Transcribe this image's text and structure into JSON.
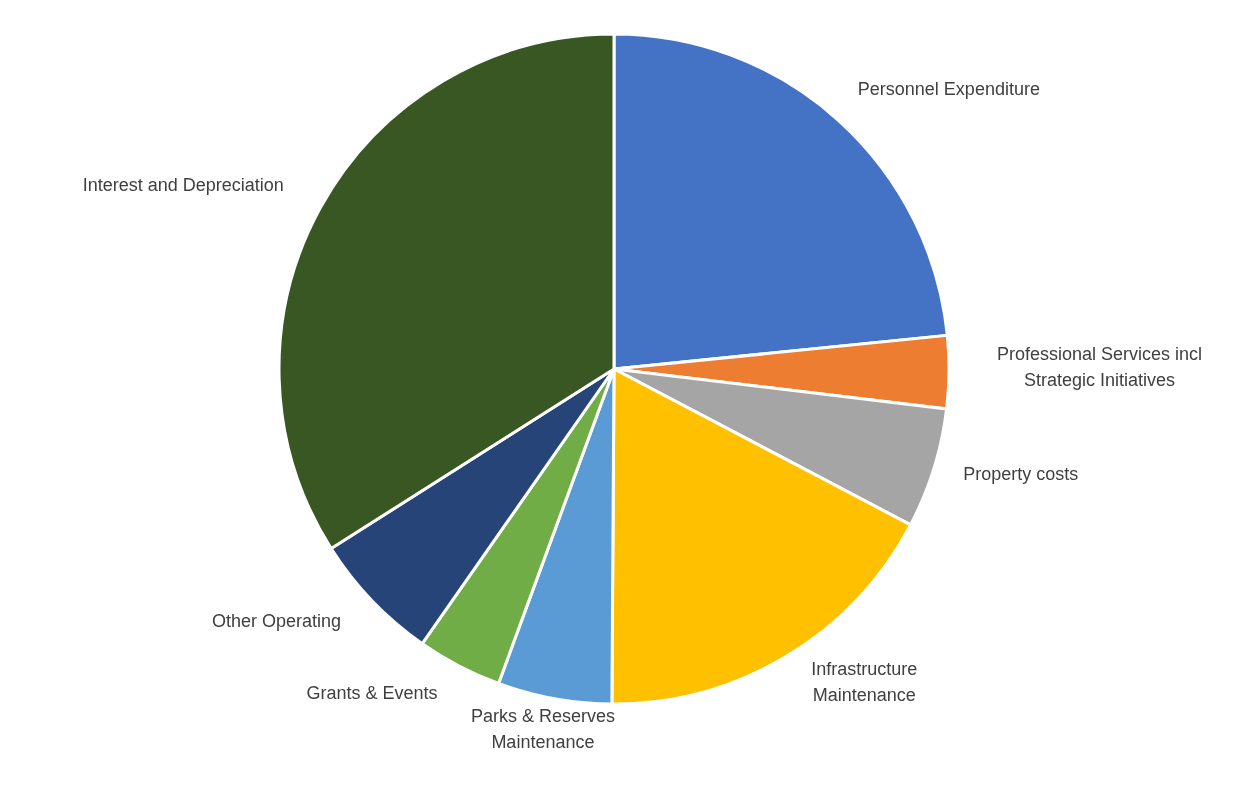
{
  "chart_data": {
    "type": "pie",
    "categories": [
      "Personnel Expenditure",
      "Professional Services incl Strategic Initiatives",
      "Property costs",
      "Infrastructure Maintenance",
      "Parks & Reserves Maintenance",
      "Grants & Events",
      "Other Operating",
      "Interest and Depreciation"
    ],
    "values": [
      23.4,
      3.5,
      5.8,
      17.4,
      5.5,
      4.1,
      6.3,
      34.0
    ],
    "colors": [
      "#4472c4",
      "#ed7d31",
      "#a5a5a5",
      "#ffc000",
      "#5b9bd5",
      "#70ad47",
      "#264478",
      "#385723"
    ]
  }
}
